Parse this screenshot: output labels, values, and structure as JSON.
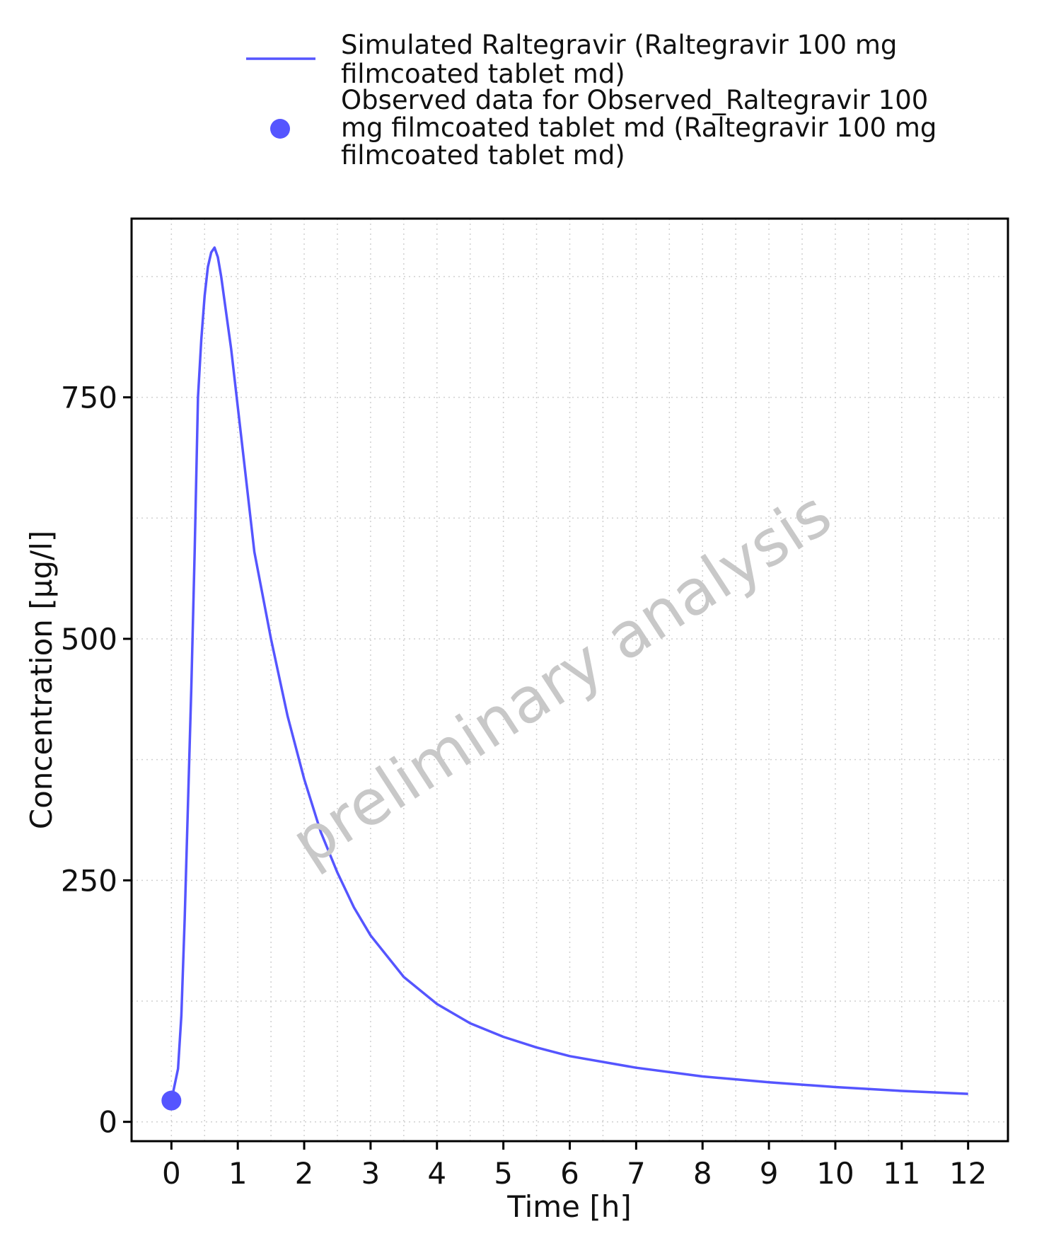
{
  "chart_data": {
    "type": "line",
    "xlabel": "Time [h]",
    "ylabel": "Concentration [µg/l]",
    "xlim": [
      -0.6,
      12.6
    ],
    "ylim": [
      -20,
      935
    ],
    "x_ticks": [
      0,
      1,
      2,
      3,
      4,
      5,
      6,
      7,
      8,
      9,
      10,
      11,
      12
    ],
    "y_ticks": [
      0,
      250,
      500,
      750
    ],
    "grid": true,
    "legend_position": "top",
    "watermark": "preliminary analysis",
    "colors": {
      "series": "#5555ff"
    },
    "series": [
      {
        "name": "Simulated Raltegravir (Raltegravir 100 mg filmcoated tablet md)",
        "kind": "line",
        "x": [
          0,
          0.1,
          0.15,
          0.2,
          0.25,
          0.3,
          0.35,
          0.4,
          0.45,
          0.5,
          0.55,
          0.6,
          0.65,
          0.7,
          0.75,
          0.8,
          0.85,
          0.9,
          1.0,
          1.1,
          1.25,
          1.5,
          1.75,
          2.0,
          2.25,
          2.5,
          2.75,
          3.0,
          3.5,
          4.0,
          4.5,
          5.0,
          5.5,
          6.0,
          7.0,
          8.0,
          9.0,
          10.0,
          11.0,
          12.0
        ],
        "y": [
          22,
          55,
          110,
          210,
          330,
          450,
          590,
          750,
          810,
          855,
          885,
          900,
          905,
          895,
          875,
          850,
          825,
          800,
          740,
          680,
          590,
          500,
          420,
          355,
          300,
          258,
          222,
          193,
          150,
          122,
          102,
          88,
          77,
          68,
          56,
          47,
          41,
          36,
          32,
          29
        ]
      },
      {
        "name": "Observed data for Observed_Raltegravir 100 mg filmcoated tablet md (Raltegravir 100 mg filmcoated tablet md)",
        "kind": "scatter",
        "x": [
          0
        ],
        "y": [
          22
        ]
      }
    ],
    "legend": {
      "line_label_lines": [
        "Simulated Raltegravir (Raltegravir 100 mg",
        "filmcoated tablet md)"
      ],
      "point_label_lines": [
        "Observed data for Observed_Raltegravir 100",
        "mg filmcoated tablet md (Raltegravir 100 mg",
        "filmcoated tablet md)"
      ]
    }
  }
}
